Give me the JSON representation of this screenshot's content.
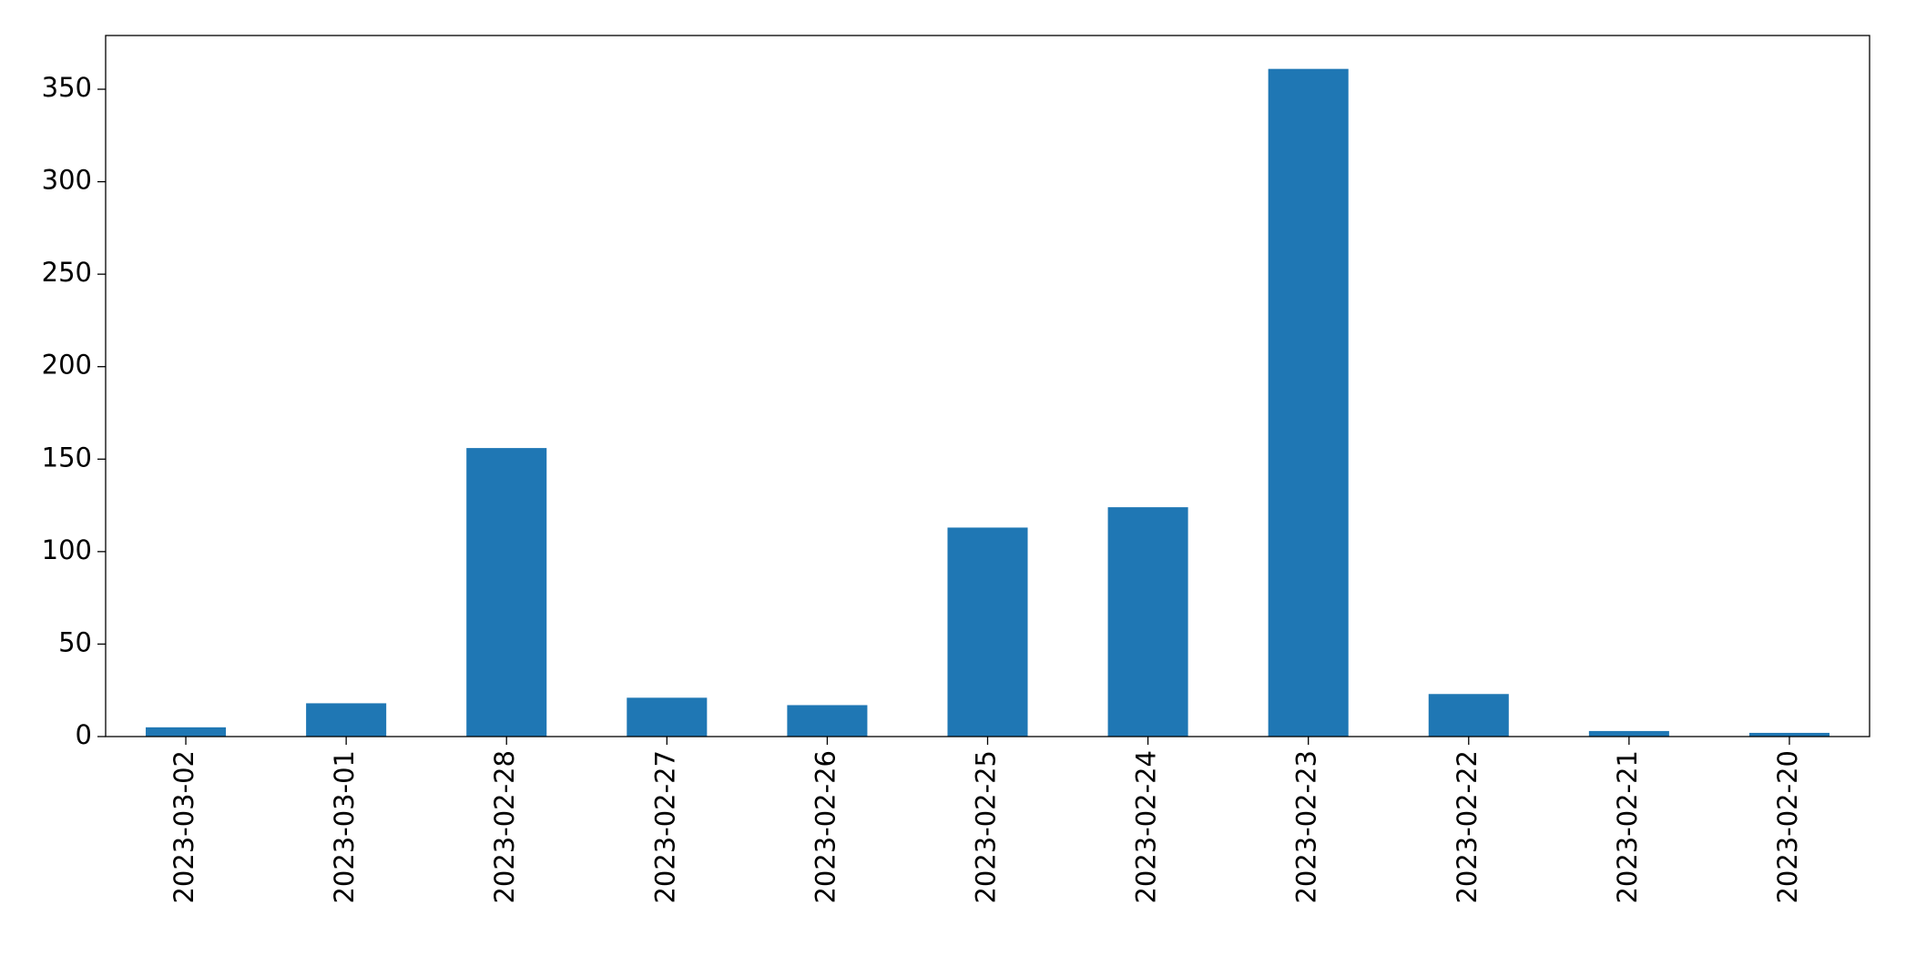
{
  "chart_data": {
    "type": "bar",
    "categories": [
      "2023-03-02",
      "2023-03-01",
      "2023-02-28",
      "2023-02-27",
      "2023-02-26",
      "2023-02-25",
      "2023-02-24",
      "2023-02-23",
      "2023-02-22",
      "2023-02-21",
      "2023-02-20"
    ],
    "values": [
      5,
      18,
      156,
      21,
      17,
      113,
      124,
      361,
      23,
      3,
      2
    ],
    "color": "#1f77b4",
    "ylim": [
      0,
      379.05
    ],
    "yticks": [
      0,
      50,
      100,
      150,
      200,
      250,
      300,
      350
    ],
    "grid": false
  }
}
